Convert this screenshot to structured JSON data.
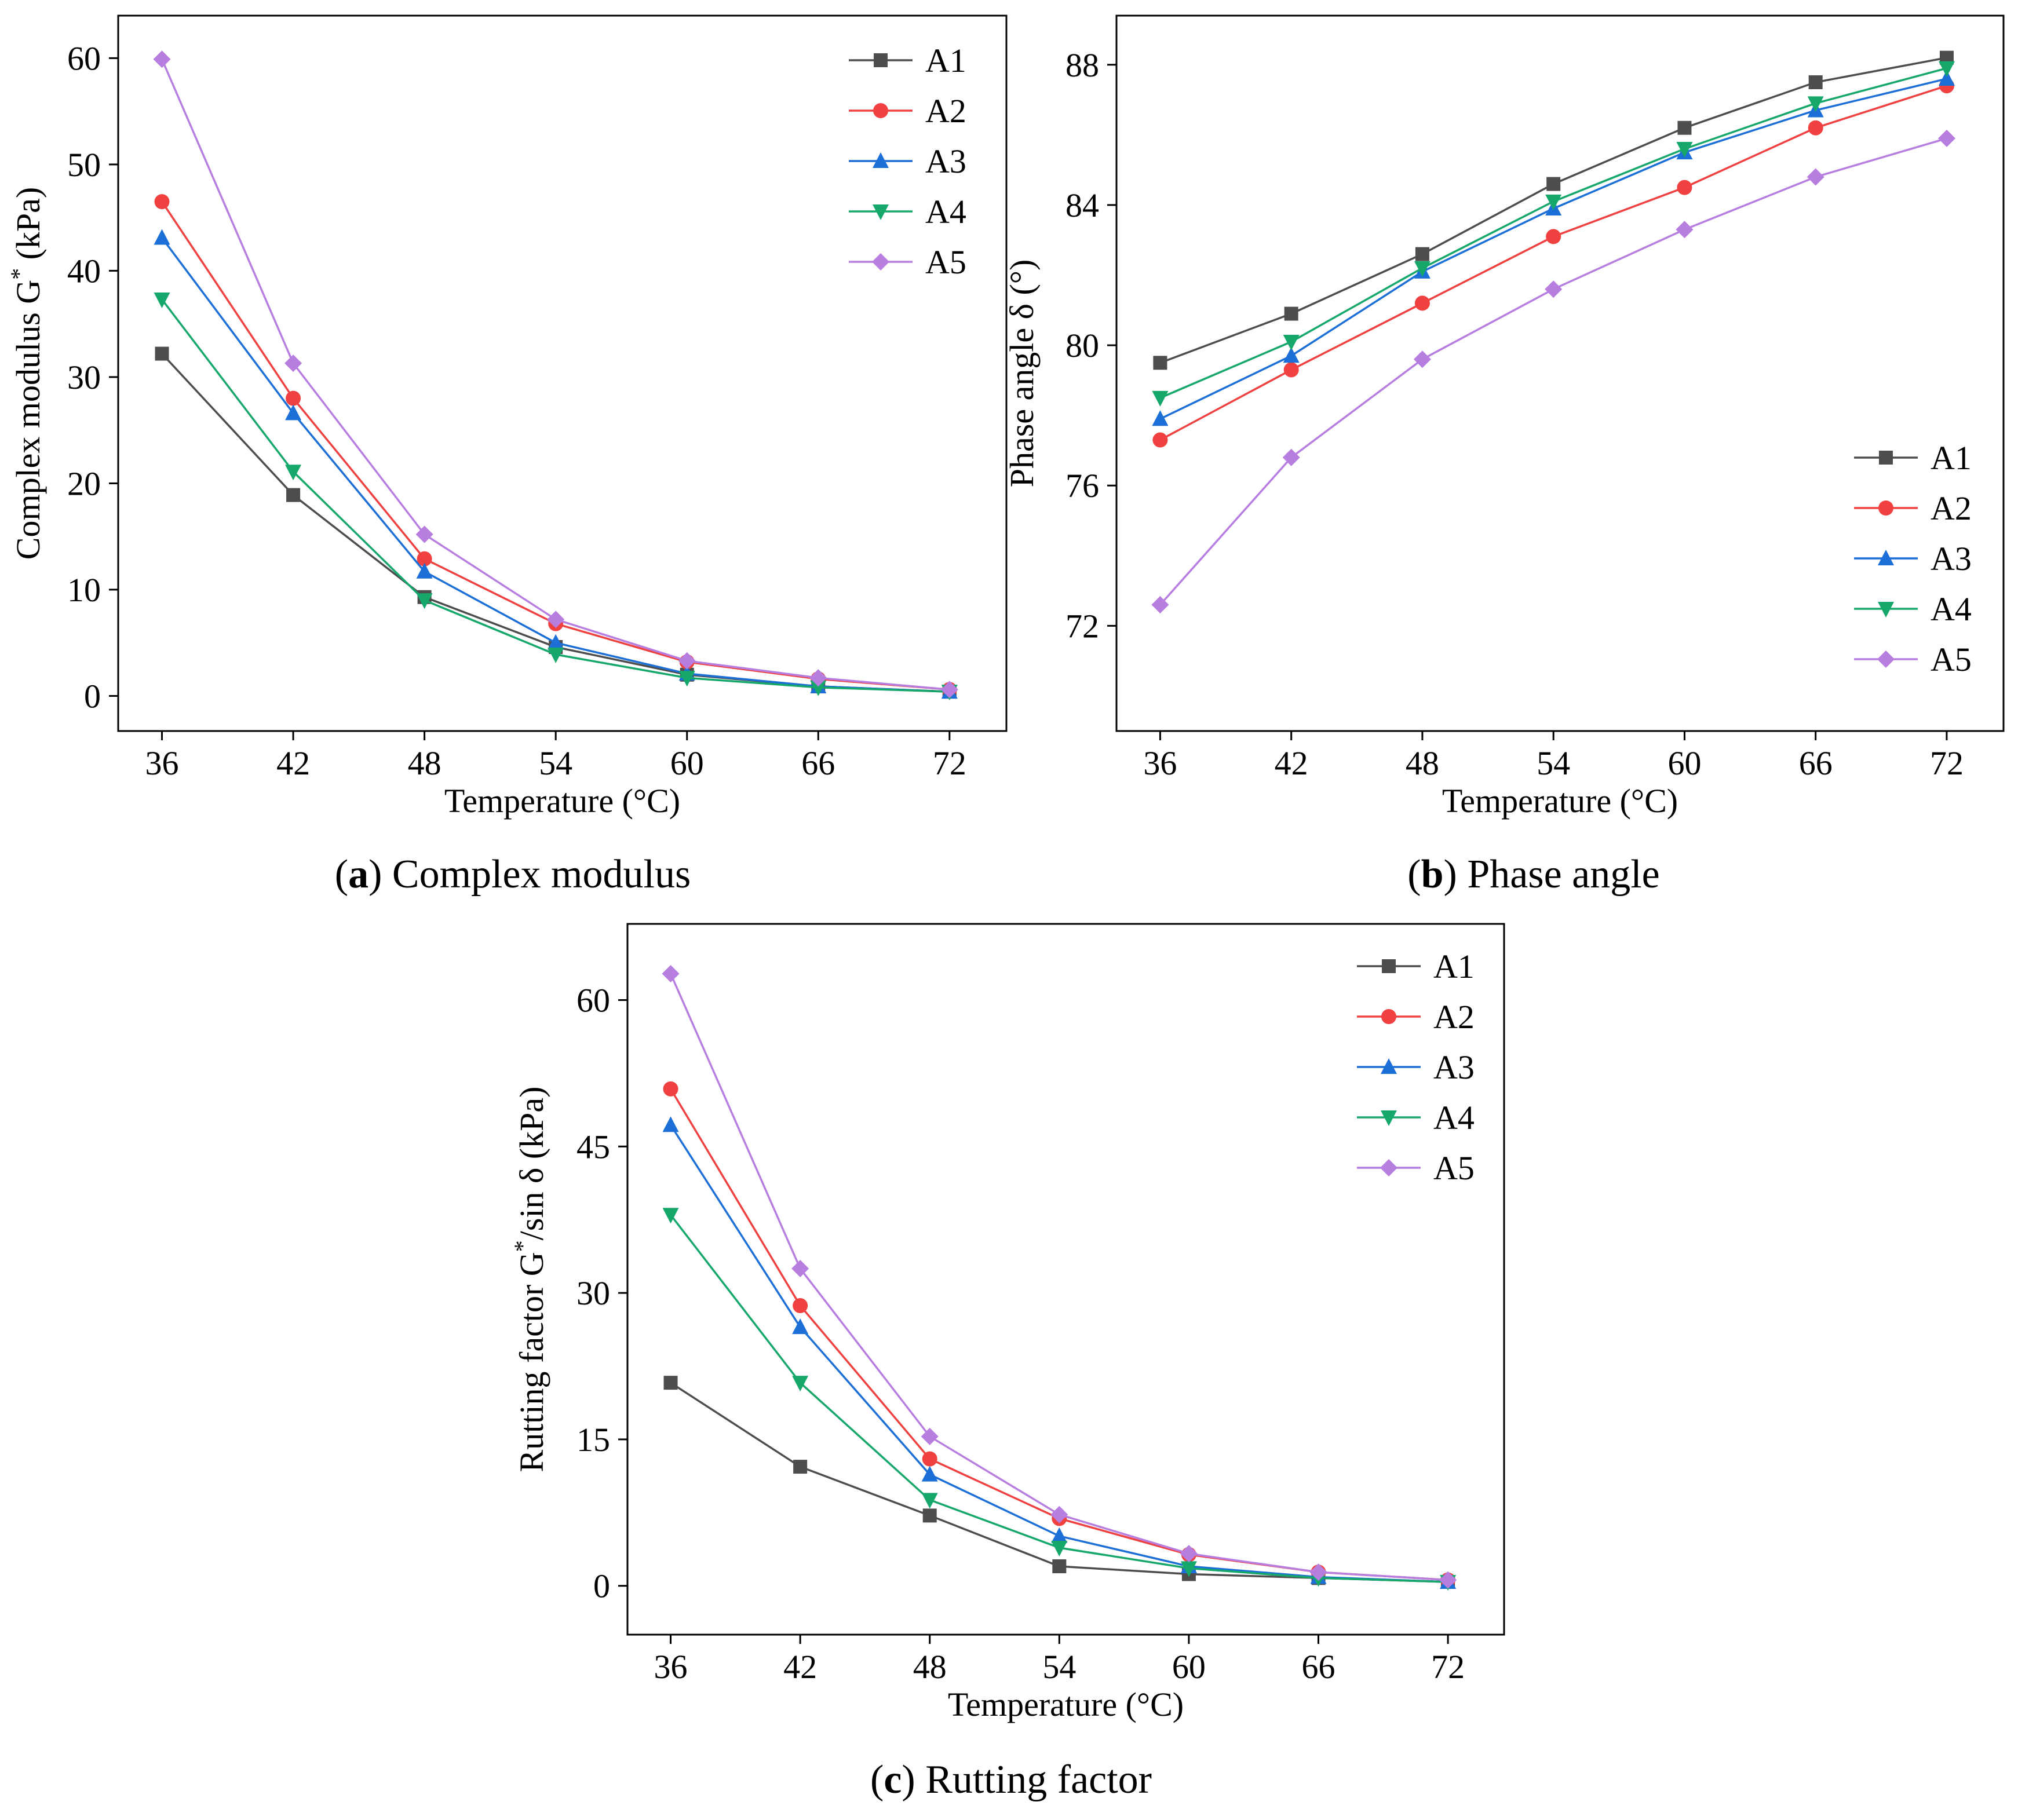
{
  "chart_data": [
    {
      "type": "line",
      "caption": {
        "letter": "a",
        "text": "Complex modulus"
      },
      "xlabel": "Temperature (°C)",
      "ylabel_parts": [
        "Complex modulus G",
        "*",
        " (kPa)"
      ],
      "x": [
        36,
        42,
        48,
        54,
        60,
        66,
        72
      ],
      "xlim": [
        34,
        74.6
      ],
      "ylim": [
        -3.3,
        64
      ],
      "yticks": [
        0,
        10,
        20,
        30,
        40,
        50,
        60
      ],
      "legend_position": "top-right",
      "grid": false,
      "series": [
        {
          "name": "A1",
          "values": [
            32.2,
            18.9,
            9.3,
            4.6,
            2.0,
            0.9,
            0.4
          ]
        },
        {
          "name": "A2",
          "values": [
            46.5,
            28.0,
            12.9,
            6.8,
            3.2,
            1.6,
            0.6
          ]
        },
        {
          "name": "A3",
          "values": [
            43.1,
            26.6,
            11.7,
            5.0,
            2.1,
            0.9,
            0.4
          ]
        },
        {
          "name": "A4",
          "values": [
            37.3,
            21.1,
            9.0,
            3.9,
            1.7,
            0.8,
            0.4
          ]
        },
        {
          "name": "A5",
          "values": [
            59.9,
            31.3,
            15.2,
            7.2,
            3.3,
            1.7,
            0.6
          ]
        }
      ]
    },
    {
      "type": "line",
      "caption": {
        "letter": "b",
        "text": "Phase angle"
      },
      "xlabel": "Temperature (°C)",
      "ylabel_parts": [
        "Phase angle δ (°)"
      ],
      "x": [
        36,
        42,
        48,
        54,
        60,
        66,
        72
      ],
      "xlim": [
        34,
        74.6
      ],
      "ylim": [
        69.0,
        89.4
      ],
      "yticks": [
        72,
        76,
        80,
        84,
        88
      ],
      "legend_position": "bottom-right",
      "grid": false,
      "series": [
        {
          "name": "A1",
          "values": [
            79.5,
            80.9,
            82.6,
            84.6,
            86.2,
            87.5,
            88.2
          ]
        },
        {
          "name": "A2",
          "values": [
            77.3,
            79.3,
            81.2,
            83.1,
            84.5,
            86.2,
            87.4
          ]
        },
        {
          "name": "A3",
          "values": [
            77.9,
            79.7,
            82.1,
            83.9,
            85.5,
            86.7,
            87.6
          ]
        },
        {
          "name": "A4",
          "values": [
            78.5,
            80.1,
            82.2,
            84.1,
            85.6,
            86.9,
            87.9
          ]
        },
        {
          "name": "A5",
          "values": [
            72.6,
            76.8,
            79.6,
            81.6,
            83.3,
            84.8,
            85.9
          ]
        }
      ]
    },
    {
      "type": "line",
      "caption": {
        "letter": "c",
        "text": "Rutting factor"
      },
      "xlabel": "Temperature (°C)",
      "ylabel_parts": [
        "Rutting factor G",
        "*",
        "/sin δ (kPa)"
      ],
      "x": [
        36,
        42,
        48,
        54,
        60,
        66,
        72
      ],
      "xlim": [
        34,
        74.6
      ],
      "ylim": [
        -5.0,
        67.8
      ],
      "yticks": [
        0,
        15,
        30,
        45,
        60
      ],
      "legend_position": "top-right",
      "grid": false,
      "series": [
        {
          "name": "A1",
          "values": [
            20.8,
            12.2,
            7.2,
            2.0,
            1.2,
            0.8,
            0.4
          ]
        },
        {
          "name": "A2",
          "values": [
            50.9,
            28.7,
            13.0,
            6.9,
            3.2,
            1.4,
            0.6
          ]
        },
        {
          "name": "A3",
          "values": [
            47.2,
            26.5,
            11.4,
            5.1,
            2.0,
            0.9,
            0.4
          ]
        },
        {
          "name": "A4",
          "values": [
            38.0,
            20.8,
            8.8,
            3.9,
            1.8,
            0.8,
            0.4
          ]
        },
        {
          "name": "A5",
          "values": [
            62.7,
            32.5,
            15.3,
            7.3,
            3.3,
            1.4,
            0.6
          ]
        }
      ]
    }
  ],
  "series_styles": [
    {
      "name": "A1",
      "color": "#4d4d4d",
      "marker": "square"
    },
    {
      "name": "A2",
      "color": "#f04040",
      "marker": "circle"
    },
    {
      "name": "A3",
      "color": "#1c6fd6",
      "marker": "triangle-up"
    },
    {
      "name": "A4",
      "color": "#16a86a",
      "marker": "triangle-down"
    },
    {
      "name": "A5",
      "color": "#b77ee0",
      "marker": "diamond"
    }
  ]
}
